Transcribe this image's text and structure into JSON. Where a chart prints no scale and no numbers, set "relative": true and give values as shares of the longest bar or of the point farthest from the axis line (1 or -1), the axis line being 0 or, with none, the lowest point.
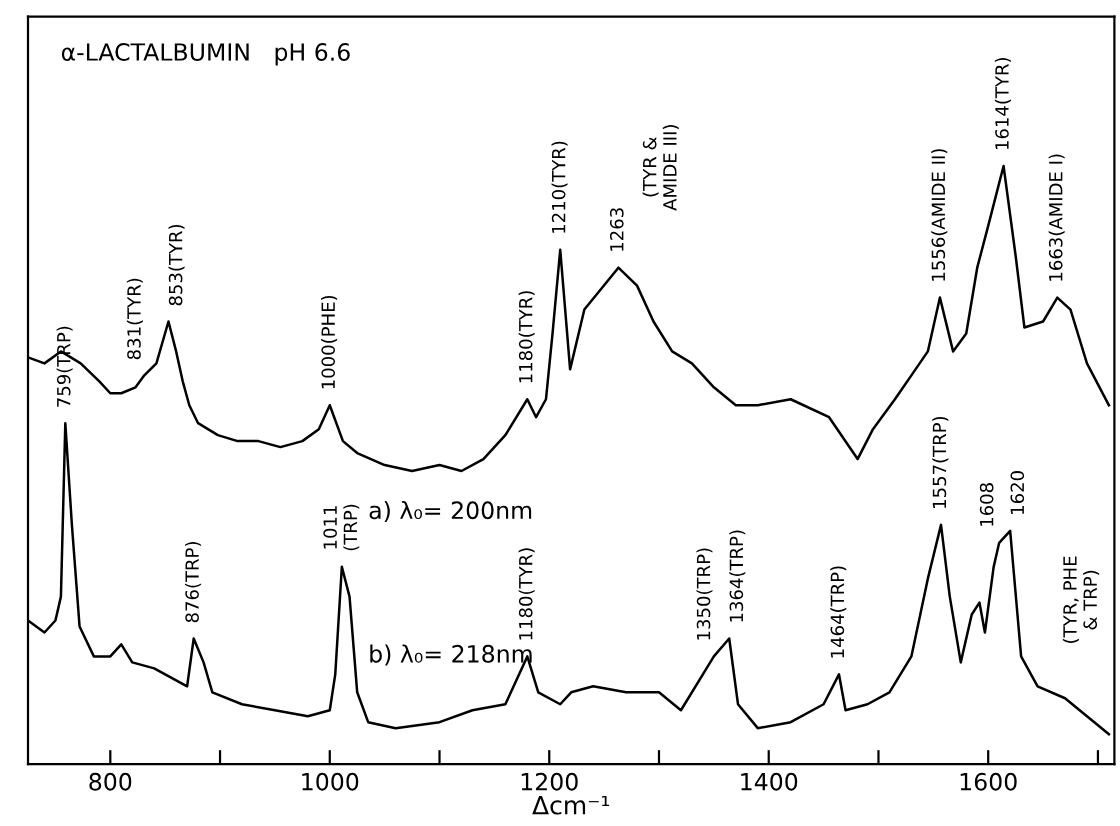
{
  "chart_data": {
    "type": "line",
    "title": "α-LACTALBUMIN   pH 6.6",
    "xlabel": "Δcm⁻¹",
    "relative": true,
    "xlim": [
      725,
      1715
    ],
    "xticks": [
      800,
      {
        "value": 900,
        "label": null
      },
      1000,
      {
        "value": 1100,
        "label": null
      },
      1200,
      {
        "value": 1300,
        "label": null
      },
      1400,
      {
        "value": 1500,
        "label": null
      },
      1600,
      {
        "value": 1700,
        "label": null
      }
    ],
    "series": [
      {
        "name": "a) λ₀= 200nm",
        "color": "#000000",
        "x": [
          725,
          740,
          755,
          773,
          790,
          800,
          810,
          823,
          831,
          842,
          853,
          860,
          866,
          872,
          880,
          898,
          916,
          935,
          955,
          975,
          990,
          1000,
          1012,
          1025,
          1050,
          1075,
          1100,
          1120,
          1140,
          1160,
          1180,
          1188,
          1197,
          1203,
          1210,
          1219,
          1232,
          1263,
          1280,
          1295,
          1312,
          1330,
          1350,
          1370,
          1390,
          1420,
          1455,
          1481,
          1495,
          1515,
          1530,
          1545,
          1556,
          1568,
          1580,
          1590,
          1600,
          1607,
          1614,
          1625,
          1633,
          1650,
          1663,
          1675,
          1690,
          1710
        ],
        "values": [
          0.68,
          0.67,
          0.69,
          0.67,
          0.64,
          0.62,
          0.62,
          0.63,
          0.65,
          0.67,
          0.74,
          0.69,
          0.64,
          0.6,
          0.57,
          0.55,
          0.54,
          0.54,
          0.53,
          0.54,
          0.56,
          0.6,
          0.54,
          0.52,
          0.5,
          0.49,
          0.5,
          0.49,
          0.51,
          0.55,
          0.61,
          0.58,
          0.61,
          0.72,
          0.86,
          0.66,
          0.76,
          0.83,
          0.8,
          0.74,
          0.69,
          0.67,
          0.63,
          0.6,
          0.6,
          0.61,
          0.58,
          0.51,
          0.56,
          0.61,
          0.65,
          0.69,
          0.78,
          0.69,
          0.72,
          0.83,
          0.9,
          0.95,
          1.0,
          0.85,
          0.73,
          0.74,
          0.78,
          0.76,
          0.67,
          0.6
        ]
      },
      {
        "name": "b) λ₀= 218nm",
        "color": "#000000",
        "x": [
          725,
          740,
          750,
          755,
          759,
          765,
          772,
          785,
          800,
          810,
          820,
          840,
          860,
          870,
          876,
          885,
          893,
          920,
          950,
          980,
          1000,
          1005,
          1011,
          1018,
          1025,
          1035,
          1060,
          1100,
          1130,
          1160,
          1180,
          1190,
          1210,
          1220,
          1240,
          1270,
          1300,
          1320,
          1340,
          1350,
          1364,
          1372,
          1390,
          1420,
          1450,
          1464,
          1470,
          1490,
          1510,
          1530,
          1545,
          1557,
          1565,
          1575,
          1585,
          1592,
          1597,
          1605,
          1610,
          1620,
          1630,
          1645,
          1670,
          1690,
          1710
        ],
        "values": [
          0.24,
          0.22,
          0.24,
          0.28,
          0.57,
          0.4,
          0.23,
          0.18,
          0.18,
          0.2,
          0.17,
          0.16,
          0.14,
          0.13,
          0.21,
          0.17,
          0.12,
          0.1,
          0.09,
          0.08,
          0.09,
          0.15,
          0.33,
          0.28,
          0.12,
          0.07,
          0.06,
          0.07,
          0.09,
          0.1,
          0.18,
          0.12,
          0.1,
          0.12,
          0.13,
          0.12,
          0.12,
          0.09,
          0.15,
          0.18,
          0.21,
          0.1,
          0.06,
          0.07,
          0.1,
          0.15,
          0.09,
          0.1,
          0.12,
          0.18,
          0.31,
          0.4,
          0.28,
          0.17,
          0.25,
          0.27,
          0.22,
          0.33,
          0.37,
          0.39,
          0.18,
          0.13,
          0.11,
          0.08,
          0.05
        ]
      }
    ],
    "annotations": [
      {
        "text": "831(TYR)",
        "x": 831,
        "y": 0.65
      },
      {
        "text": "853(TYR)",
        "x": 853,
        "y": 0.74
      },
      {
        "text": "1000(PHE)",
        "x": 1000,
        "y": 0.6
      },
      {
        "text": "1180(TYR)",
        "x": 1180,
        "y": 0.61
      },
      {
        "text": "1210(TYR)",
        "x": 1210,
        "y": 0.86
      },
      {
        "text": "1263",
        "x": 1263,
        "y": 0.83
      },
      "(TYR &\nAMIDE III)",
      {
        "text": "1556(AMIDE II)",
        "x": 1556,
        "y": 0.78
      },
      {
        "text": "1614(TYR)",
        "x": 1614,
        "y": 1.0
      },
      {
        "text": "1663(AMIDE I)",
        "x": 1663,
        "y": 0.78
      },
      {
        "text": "759(TRP)",
        "x": 759,
        "y": 0.57
      },
      {
        "text": "876(TRP)",
        "x": 876,
        "y": 0.21
      },
      {
        "text": "1011\n(TRP)",
        "x": 1011,
        "y": 0.33
      },
      {
        "text": "1180(TYR)",
        "x": 1180,
        "y": 0.18
      },
      {
        "text": "1350(TRP)",
        "x": 1350,
        "y": 0.18
      },
      {
        "text": "1364(TRP)",
        "x": 1364,
        "y": 0.21
      },
      {
        "text": "1464(TRP)",
        "x": 1464,
        "y": 0.15
      },
      {
        "text": "1557(TRP)",
        "x": 1557,
        "y": 0.4
      },
      {
        "text": "1608",
        "x": 1608,
        "y": 0.37
      },
      {
        "text": "1620",
        "x": 1620,
        "y": 0.39
      },
      "(TYR, PHE\n& TRP)"
    ]
  }
}
